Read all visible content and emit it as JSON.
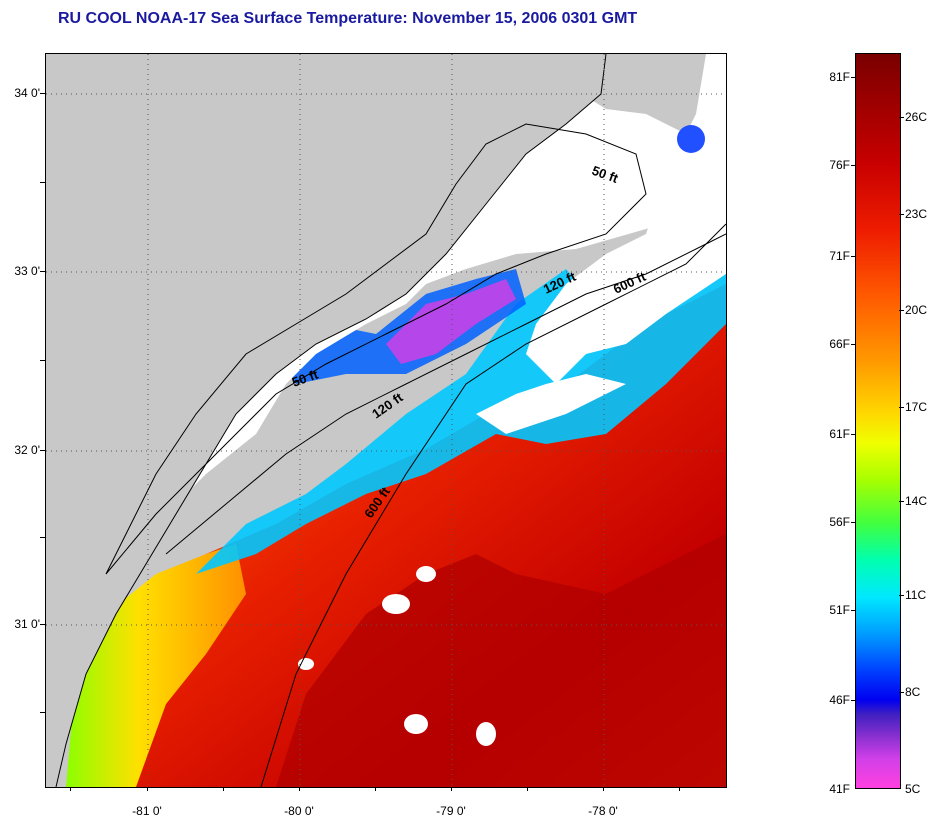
{
  "title": "RU COOL  NOAA-17  Sea Surface Temperature:  November 15, 2006 0301 GMT",
  "map": {
    "lat_labels": [
      "34 0'",
      "33 0'",
      "32 0'",
      "31 0'"
    ],
    "lon_labels": [
      "-81 0'",
      "-80 0'",
      "-79 0'",
      "-78 0'"
    ],
    "contour_labels": [
      "50 ft",
      "120 ft",
      "600 ft",
      "50 ft",
      "120 ft",
      "600 ft"
    ]
  },
  "colorbar": {
    "fahrenheit": [
      "81F",
      "76F",
      "71F",
      "66F",
      "61F",
      "56F",
      "51F",
      "46F",
      "41F"
    ],
    "celsius": [
      "26C",
      "23C",
      "20C",
      "17C",
      "14C",
      "11C",
      "8C",
      "5C"
    ]
  },
  "colors": {
    "title": "#1a1aa0",
    "land": "#c8c8c8",
    "cloud": "#ffffff",
    "warm": "#e01a00",
    "hot": "#b40000",
    "cold": "#0050ff"
  }
}
